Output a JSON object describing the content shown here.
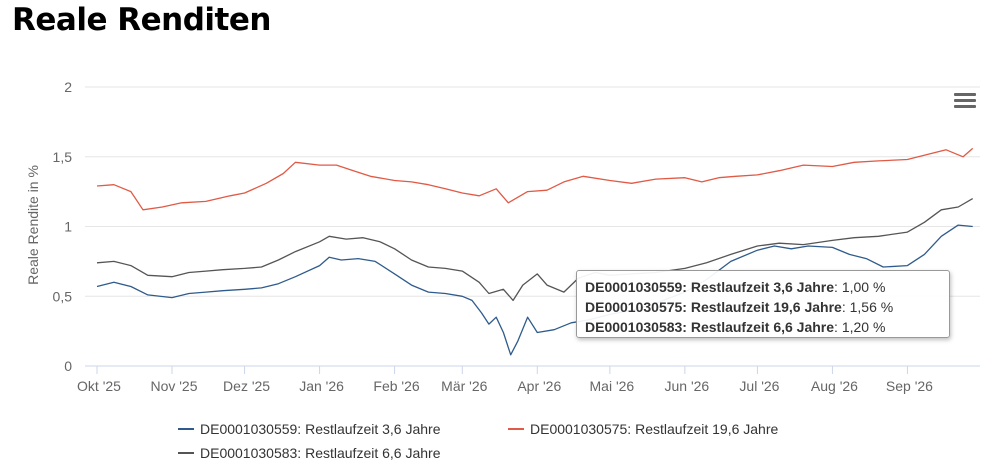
{
  "page_title": "Reale Renditen",
  "chart_data": {
    "type": "line",
    "title": "Reale Renditen",
    "ylabel": "Reale Rendite in %",
    "ylim": [
      0,
      2
    ],
    "yticks": [
      "0",
      "0,5",
      "1",
      "1,5",
      "2"
    ],
    "xticks": [
      "Okt '25",
      "Nov '25",
      "Dez '25",
      "Jan '26",
      "Feb '26",
      "Mär '26",
      "Apr '26",
      "Mai '26",
      "Jun '26",
      "Jul '26",
      "Aug '26",
      "Sep '26"
    ],
    "grid": true,
    "legend": "bottom",
    "x_months": [
      "2025-10",
      "2025-11",
      "2025-12",
      "2026-01",
      "2026-02",
      "2026-03",
      "2026-04",
      "2026-05",
      "2026-06",
      "2026-07",
      "2026-08",
      "2026-09"
    ],
    "series": [
      {
        "name": "DE0001030559: Restlaufzeit 3,6 Jahre",
        "color": "#2f5b8c",
        "points": [
          [
            "2025-10-01",
            0.57
          ],
          [
            "2025-10-08",
            0.6
          ],
          [
            "2025-10-15",
            0.57
          ],
          [
            "2025-10-22",
            0.51
          ],
          [
            "2025-11-01",
            0.49
          ],
          [
            "2025-11-08",
            0.52
          ],
          [
            "2025-11-15",
            0.53
          ],
          [
            "2025-11-22",
            0.54
          ],
          [
            "2025-12-01",
            0.55
          ],
          [
            "2025-12-08",
            0.56
          ],
          [
            "2025-12-15",
            0.59
          ],
          [
            "2025-12-22",
            0.64
          ],
          [
            "2026-01-01",
            0.72
          ],
          [
            "2026-01-05",
            0.78
          ],
          [
            "2026-01-10",
            0.76
          ],
          [
            "2026-01-17",
            0.77
          ],
          [
            "2026-01-24",
            0.75
          ],
          [
            "2026-02-01",
            0.66
          ],
          [
            "2026-02-08",
            0.58
          ],
          [
            "2026-02-15",
            0.53
          ],
          [
            "2026-02-22",
            0.52
          ],
          [
            "2026-03-01",
            0.5
          ],
          [
            "2026-03-05",
            0.47
          ],
          [
            "2026-03-09",
            0.38
          ],
          [
            "2026-03-12",
            0.3
          ],
          [
            "2026-03-15",
            0.35
          ],
          [
            "2026-03-18",
            0.24
          ],
          [
            "2026-03-21",
            0.08
          ],
          [
            "2026-03-24",
            0.18
          ],
          [
            "2026-03-28",
            0.35
          ],
          [
            "2026-04-01",
            0.24
          ],
          [
            "2026-04-08",
            0.26
          ],
          [
            "2026-04-15",
            0.31
          ],
          [
            "2026-04-22",
            0.33
          ],
          [
            "2026-05-01",
            0.37
          ],
          [
            "2026-05-10",
            0.4
          ],
          [
            "2026-05-20",
            0.45
          ],
          [
            "2026-06-01",
            0.53
          ],
          [
            "2026-06-10",
            0.62
          ],
          [
            "2026-06-20",
            0.75
          ],
          [
            "2026-07-01",
            0.83
          ],
          [
            "2026-07-08",
            0.86
          ],
          [
            "2026-07-15",
            0.84
          ],
          [
            "2026-07-22",
            0.86
          ],
          [
            "2026-08-01",
            0.85
          ],
          [
            "2026-08-08",
            0.8
          ],
          [
            "2026-08-15",
            0.77
          ],
          [
            "2026-08-22",
            0.71
          ],
          [
            "2026-09-01",
            0.72
          ],
          [
            "2026-09-08",
            0.8
          ],
          [
            "2026-09-15",
            0.93
          ],
          [
            "2026-09-22",
            1.01
          ],
          [
            "2026-09-28",
            1.0
          ]
        ]
      },
      {
        "name": "DE0001030575: Restlaufzeit 19,6 Jahre",
        "color": "#e05a45",
        "points": [
          [
            "2025-10-01",
            1.29
          ],
          [
            "2025-10-08",
            1.3
          ],
          [
            "2025-10-15",
            1.25
          ],
          [
            "2025-10-20",
            1.12
          ],
          [
            "2025-10-28",
            1.14
          ],
          [
            "2025-11-05",
            1.17
          ],
          [
            "2025-11-15",
            1.18
          ],
          [
            "2025-11-25",
            1.22
          ],
          [
            "2025-12-01",
            1.24
          ],
          [
            "2025-12-10",
            1.31
          ],
          [
            "2025-12-17",
            1.38
          ],
          [
            "2025-12-22",
            1.46
          ],
          [
            "2026-01-01",
            1.44
          ],
          [
            "2026-01-08",
            1.44
          ],
          [
            "2026-01-15",
            1.4
          ],
          [
            "2026-01-22",
            1.36
          ],
          [
            "2026-02-01",
            1.33
          ],
          [
            "2026-02-08",
            1.32
          ],
          [
            "2026-02-15",
            1.3
          ],
          [
            "2026-02-22",
            1.27
          ],
          [
            "2026-03-01",
            1.24
          ],
          [
            "2026-03-08",
            1.22
          ],
          [
            "2026-03-15",
            1.27
          ],
          [
            "2026-03-20",
            1.17
          ],
          [
            "2026-03-28",
            1.25
          ],
          [
            "2026-04-05",
            1.26
          ],
          [
            "2026-04-12",
            1.32
          ],
          [
            "2026-04-20",
            1.36
          ],
          [
            "2026-05-01",
            1.33
          ],
          [
            "2026-05-10",
            1.31
          ],
          [
            "2026-05-20",
            1.34
          ],
          [
            "2026-06-01",
            1.35
          ],
          [
            "2026-06-08",
            1.32
          ],
          [
            "2026-06-15",
            1.35
          ],
          [
            "2026-06-22",
            1.36
          ],
          [
            "2026-07-01",
            1.37
          ],
          [
            "2026-07-10",
            1.4
          ],
          [
            "2026-07-20",
            1.44
          ],
          [
            "2026-08-01",
            1.43
          ],
          [
            "2026-08-10",
            1.46
          ],
          [
            "2026-08-20",
            1.47
          ],
          [
            "2026-09-01",
            1.48
          ],
          [
            "2026-09-10",
            1.52
          ],
          [
            "2026-09-17",
            1.55
          ],
          [
            "2026-09-24",
            1.5
          ],
          [
            "2026-09-28",
            1.56
          ]
        ]
      },
      {
        "name": "DE0001030583: Restlaufzeit 6,6 Jahre",
        "color": "#555555",
        "points": [
          [
            "2025-10-01",
            0.74
          ],
          [
            "2025-10-08",
            0.75
          ],
          [
            "2025-10-15",
            0.72
          ],
          [
            "2025-10-22",
            0.65
          ],
          [
            "2025-11-01",
            0.64
          ],
          [
            "2025-11-08",
            0.67
          ],
          [
            "2025-11-15",
            0.68
          ],
          [
            "2025-11-22",
            0.69
          ],
          [
            "2025-12-01",
            0.7
          ],
          [
            "2025-12-08",
            0.71
          ],
          [
            "2025-12-15",
            0.76
          ],
          [
            "2025-12-22",
            0.82
          ],
          [
            "2026-01-01",
            0.89
          ],
          [
            "2026-01-05",
            0.93
          ],
          [
            "2026-01-12",
            0.91
          ],
          [
            "2026-01-19",
            0.92
          ],
          [
            "2026-01-26",
            0.89
          ],
          [
            "2026-02-01",
            0.84
          ],
          [
            "2026-02-08",
            0.76
          ],
          [
            "2026-02-15",
            0.71
          ],
          [
            "2026-02-22",
            0.7
          ],
          [
            "2026-03-01",
            0.68
          ],
          [
            "2026-03-08",
            0.6
          ],
          [
            "2026-03-12",
            0.52
          ],
          [
            "2026-03-18",
            0.55
          ],
          [
            "2026-03-22",
            0.47
          ],
          [
            "2026-03-26",
            0.58
          ],
          [
            "2026-04-01",
            0.66
          ],
          [
            "2026-04-05",
            0.58
          ],
          [
            "2026-04-12",
            0.53
          ],
          [
            "2026-04-18",
            0.63
          ],
          [
            "2026-04-25",
            0.67
          ],
          [
            "2026-05-01",
            0.65
          ],
          [
            "2026-05-10",
            0.66
          ],
          [
            "2026-05-20",
            0.67
          ],
          [
            "2026-06-01",
            0.7
          ],
          [
            "2026-06-10",
            0.74
          ],
          [
            "2026-06-20",
            0.8
          ],
          [
            "2026-07-01",
            0.86
          ],
          [
            "2026-07-10",
            0.88
          ],
          [
            "2026-07-20",
            0.87
          ],
          [
            "2026-08-01",
            0.9
          ],
          [
            "2026-08-10",
            0.92
          ],
          [
            "2026-08-20",
            0.93
          ],
          [
            "2026-09-01",
            0.96
          ],
          [
            "2026-09-08",
            1.03
          ],
          [
            "2026-09-15",
            1.12
          ],
          [
            "2026-09-22",
            1.14
          ],
          [
            "2026-09-28",
            1.2
          ]
        ]
      }
    ]
  },
  "tooltip": {
    "rows": [
      {
        "label": "DE0001030559: Restlaufzeit 3,6 Jahre",
        "value": "1,00 %"
      },
      {
        "label": "DE0001030575: Restlaufzeit 19,6 Jahre",
        "value": "1,56 %"
      },
      {
        "label": "DE0001030583: Restlaufzeit 6,6 Jahre",
        "value": "1,20 %"
      }
    ]
  },
  "menu": {
    "icon": "hamburger-menu-icon"
  }
}
